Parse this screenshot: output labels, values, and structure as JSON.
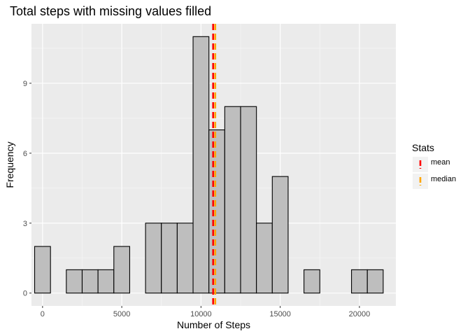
{
  "chart_data": {
    "type": "bar",
    "title": "Total steps with missing values filled",
    "xlabel": "Number of Steps",
    "ylabel": "Frequency",
    "xlim": [
      -700,
      22300
    ],
    "ylim": [
      -0.55,
      11.55
    ],
    "x_ticks": [
      0,
      5000,
      10000,
      15000,
      20000
    ],
    "x_tick_labels": [
      "0",
      "5000",
      "10000",
      "15000",
      "20000"
    ],
    "y_ticks": [
      0,
      3,
      6,
      9
    ],
    "y_tick_labels": [
      "0",
      "3",
      "6",
      "9"
    ],
    "bin_width": 1000,
    "bin_centers": [
      0,
      1000,
      2000,
      3000,
      4000,
      5000,
      6000,
      7000,
      8000,
      9000,
      10000,
      11000,
      12000,
      13000,
      14000,
      15000,
      16000,
      17000,
      18000,
      19000,
      20000,
      21000
    ],
    "values": [
      2,
      0,
      1,
      1,
      1,
      2,
      0,
      3,
      3,
      3,
      11,
      7,
      8,
      8,
      3,
      5,
      0,
      1,
      0,
      0,
      1,
      1
    ],
    "bar_fill": "#bebebe",
    "bar_stroke": "#000000",
    "panel_background": "#ebebeb",
    "grid": true,
    "vlines": [
      {
        "name": "mean",
        "x": 10766,
        "color": "#ff0000"
      },
      {
        "name": "median",
        "x": 10900,
        "color": "#ffa500"
      }
    ],
    "legend": {
      "title": "Stats",
      "position": "right",
      "entries": [
        {
          "label": "mean",
          "color": "#ff0000"
        },
        {
          "label": "median",
          "color": "#ffa500"
        }
      ]
    }
  }
}
